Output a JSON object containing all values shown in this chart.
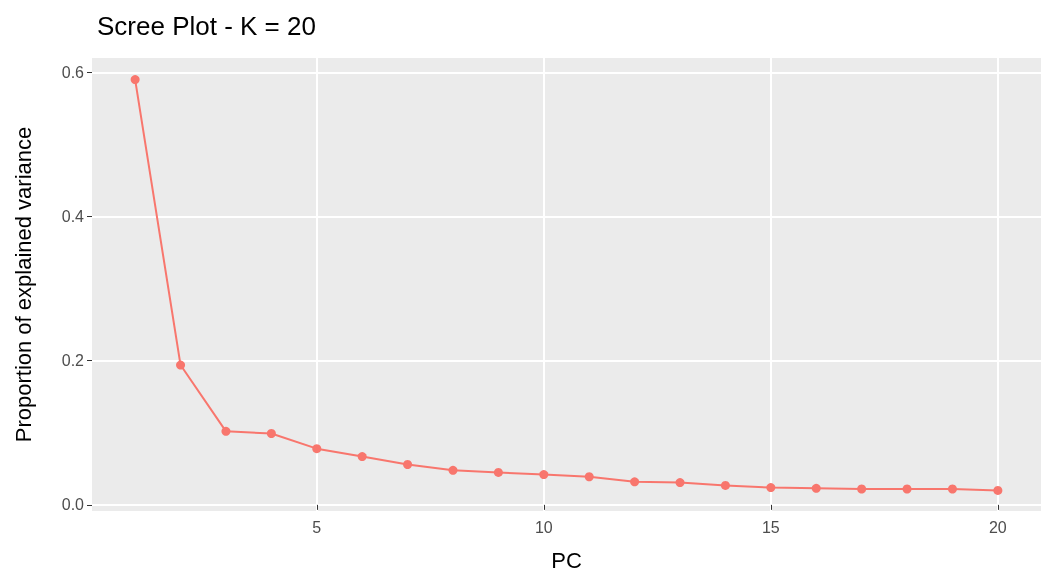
{
  "chart_data": {
    "type": "line",
    "title": "Scree Plot - K = 20",
    "xlabel": "PC",
    "ylabel": "Proportion of explained variance",
    "x": [
      1,
      2,
      3,
      4,
      5,
      6,
      7,
      8,
      9,
      10,
      11,
      12,
      13,
      14,
      15,
      16,
      17,
      18,
      19,
      20
    ],
    "series": [
      {
        "color": "#f8766d",
        "values": [
          0.59,
          0.194,
          0.102,
          0.099,
          0.078,
          0.067,
          0.056,
          0.048,
          0.045,
          0.042,
          0.039,
          0.032,
          0.031,
          0.027,
          0.024,
          0.023,
          0.022,
          0.022,
          0.022,
          0.02
        ]
      }
    ],
    "xlim": [
      0.05,
      20.95
    ],
    "xticks": [
      5,
      10,
      15,
      20
    ],
    "ylim": [
      -0.0085,
      0.62
    ],
    "yticks": [
      {
        "value": 0,
        "label": "0.0"
      },
      {
        "value": 0.2,
        "label": "0.2"
      },
      {
        "value": 0.4,
        "label": "0.4"
      },
      {
        "value": 0.6,
        "label": "0.6"
      }
    ],
    "grid": true,
    "marker": "circle",
    "line_style": "solid"
  }
}
